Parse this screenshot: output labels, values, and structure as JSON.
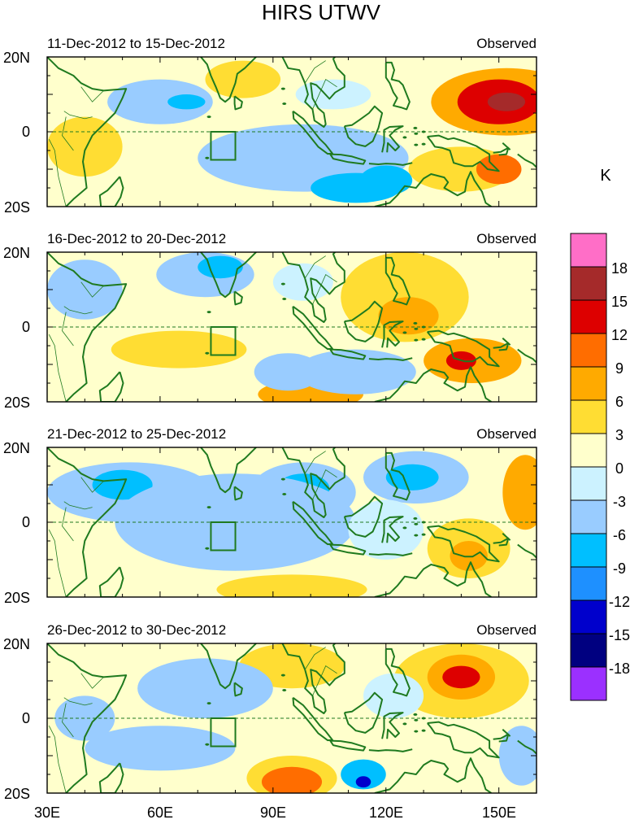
{
  "chart_data": {
    "type": "heatmap",
    "title": "HIRS UTWV",
    "units_label": "K",
    "x_tick_labels": [
      "30E",
      "60E",
      "90E",
      "120E",
      "150E"
    ],
    "x_tick_values": [
      30,
      60,
      90,
      120,
      150
    ],
    "xlim": [
      30,
      160
    ],
    "y_tick_labels": [
      "20N",
      "0",
      "20S"
    ],
    "y_tick_values": [
      20,
      0,
      -20
    ],
    "ylim": [
      -20,
      20
    ],
    "colorbar": {
      "labels": [
        "18",
        "15",
        "12",
        "9",
        "6",
        "3",
        "0",
        "-3",
        "-6",
        "-9",
        "-12",
        "-15",
        "-18"
      ],
      "levels": [
        18,
        15,
        12,
        9,
        6,
        3,
        0,
        -3,
        -6,
        -9,
        -12,
        -15,
        -18
      ],
      "colors": [
        "#ff6ec7",
        "#a52a2a",
        "#dd0000",
        "#ff6d00",
        "#ffaa00",
        "#ffdd33",
        "#ffffcc",
        "#ccf2ff",
        "#99ccff",
        "#00bfff",
        "#1e90ff",
        "#0000cc",
        "#000080",
        "#9b30ff"
      ]
    },
    "box_region": {
      "lon": [
        73.5,
        80
      ],
      "lat": [
        -7.5,
        0
      ]
    },
    "panels": [
      {
        "period": "11-Dec-2012 to 15-Dec-2012",
        "label": "Observed",
        "features": [
          {
            "lon": 152,
            "lat": 8,
            "rx": 20,
            "ry": 9,
            "v": 8
          },
          {
            "lon": 150,
            "lat": 8,
            "rx": 11,
            "ry": 6,
            "v": 12
          },
          {
            "lon": 152,
            "lat": 8,
            "rx": 5,
            "ry": 2.5,
            "v": 16
          },
          {
            "lon": 140,
            "lat": -10,
            "rx": 14,
            "ry": 6,
            "v": 5
          },
          {
            "lon": 150,
            "lat": -10,
            "rx": 6,
            "ry": 4,
            "v": 10
          },
          {
            "lon": 82,
            "lat": 14,
            "rx": 10,
            "ry": 5,
            "v": 4
          },
          {
            "lon": 40,
            "lat": -4,
            "rx": 10,
            "ry": 8,
            "v": 5
          },
          {
            "lon": 98,
            "lat": -7,
            "rx": 28,
            "ry": 9,
            "v": -4
          },
          {
            "lon": 112,
            "lat": -15,
            "rx": 12,
            "ry": 4,
            "v": -8
          },
          {
            "lon": 120,
            "lat": -13,
            "rx": 7,
            "ry": 4,
            "v": -9
          },
          {
            "lon": 60,
            "lat": 8,
            "rx": 14,
            "ry": 6,
            "v": -4
          },
          {
            "lon": 67,
            "lat": 8,
            "rx": 5,
            "ry": 2,
            "v": -7
          },
          {
            "lon": 106,
            "lat": 10,
            "rx": 10,
            "ry": 4,
            "v": -3
          }
        ]
      },
      {
        "period": "16-Dec-2012 to 20-Dec-2012",
        "label": "Observed",
        "features": [
          {
            "lon": 125,
            "lat": 8,
            "rx": 17,
            "ry": 12,
            "v": 4
          },
          {
            "lon": 126,
            "lat": 3,
            "rx": 8,
            "ry": 5,
            "v": 7
          },
          {
            "lon": 143,
            "lat": -9,
            "rx": 13,
            "ry": 6,
            "v": 8
          },
          {
            "lon": 140,
            "lat": -9,
            "rx": 4,
            "ry": 2.5,
            "v": 13
          },
          {
            "lon": 65,
            "lat": -6,
            "rx": 18,
            "ry": 5,
            "v": 4
          },
          {
            "lon": 100,
            "lat": -18,
            "rx": 14,
            "ry": 4,
            "v": 6
          },
          {
            "lon": 72,
            "lat": 14,
            "rx": 13,
            "ry": 6,
            "v": -5
          },
          {
            "lon": 76,
            "lat": 16,
            "rx": 6,
            "ry": 3,
            "v": -8
          },
          {
            "lon": 40,
            "lat": 10,
            "rx": 10,
            "ry": 8,
            "v": -4
          },
          {
            "lon": 112,
            "lat": -12,
            "rx": 16,
            "ry": 6,
            "v": -4
          },
          {
            "lon": 94,
            "lat": -12,
            "rx": 9,
            "ry": 5,
            "v": -4
          },
          {
            "lon": 98,
            "lat": 12,
            "rx": 8,
            "ry": 5,
            "v": -3
          },
          {
            "lon": 152,
            "lat": 6,
            "rx": 10,
            "ry": 8,
            "v": 2
          }
        ]
      },
      {
        "period": "21-Dec-2012 to 25-Dec-2012",
        "label": "Observed",
        "features": [
          {
            "lon": 52,
            "lat": 8,
            "rx": 22,
            "ry": 8,
            "v": -5
          },
          {
            "lon": 50,
            "lat": 10,
            "rx": 8,
            "ry": 4,
            "v": -8
          },
          {
            "lon": 98,
            "lat": 8,
            "rx": 14,
            "ry": 8,
            "v": -5
          },
          {
            "lon": 98,
            "lat": 9,
            "rx": 7,
            "ry": 4,
            "v": -8
          },
          {
            "lon": 128,
            "lat": 12,
            "rx": 14,
            "ry": 7,
            "v": -6
          },
          {
            "lon": 127,
            "lat": 12,
            "rx": 7,
            "ry": 3.5,
            "v": -9
          },
          {
            "lon": 80,
            "lat": 0,
            "rx": 32,
            "ry": 13,
            "v": -4
          },
          {
            "lon": 142,
            "lat": -7,
            "rx": 11,
            "ry": 8,
            "v": 5
          },
          {
            "lon": 142,
            "lat": -9,
            "rx": 5,
            "ry": 4,
            "v": 8
          },
          {
            "lon": 157,
            "lat": 8,
            "rx": 6,
            "ry": 10,
            "v": 6
          },
          {
            "lon": 95,
            "lat": -18,
            "rx": 20,
            "ry": 4,
            "v": 4
          },
          {
            "lon": 120,
            "lat": -2,
            "rx": 10,
            "ry": 8,
            "v": -3
          }
        ]
      },
      {
        "period": "26-Dec-2012 to 30-Dec-2012",
        "label": "Observed",
        "features": [
          {
            "lon": 140,
            "lat": 10,
            "rx": 18,
            "ry": 10,
            "v": 4
          },
          {
            "lon": 140,
            "lat": 11,
            "rx": 9,
            "ry": 6,
            "v": 8
          },
          {
            "lon": 140,
            "lat": 11,
            "rx": 5,
            "ry": 3,
            "v": 12
          },
          {
            "lon": 95,
            "lat": -16,
            "rx": 12,
            "ry": 6,
            "v": 5
          },
          {
            "lon": 95,
            "lat": -17,
            "rx": 8,
            "ry": 4,
            "v": 9
          },
          {
            "lon": 95,
            "lat": 14,
            "rx": 14,
            "ry": 6,
            "v": 4
          },
          {
            "lon": 114,
            "lat": -15,
            "rx": 6,
            "ry": 4,
            "v": -8
          },
          {
            "lon": 114,
            "lat": -17,
            "rx": 2,
            "ry": 1.5,
            "v": -14
          },
          {
            "lon": 72,
            "lat": 8,
            "rx": 18,
            "ry": 8,
            "v": -5
          },
          {
            "lon": 60,
            "lat": -8,
            "rx": 20,
            "ry": 6,
            "v": -4
          },
          {
            "lon": 40,
            "lat": 0,
            "rx": 8,
            "ry": 6,
            "v": -4
          },
          {
            "lon": 156,
            "lat": -10,
            "rx": 6,
            "ry": 8,
            "v": -5
          },
          {
            "lon": 122,
            "lat": 6,
            "rx": 8,
            "ry": 6,
            "v": -3
          }
        ]
      }
    ]
  }
}
